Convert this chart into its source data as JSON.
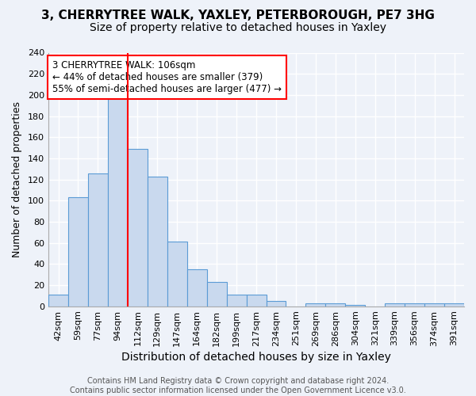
{
  "title1": "3, CHERRYTREE WALK, YAXLEY, PETERBOROUGH, PE7 3HG",
  "title2": "Size of property relative to detached houses in Yaxley",
  "xlabel": "Distribution of detached houses by size in Yaxley",
  "ylabel": "Number of detached properties",
  "bin_labels": [
    "42sqm",
    "59sqm",
    "77sqm",
    "94sqm",
    "112sqm",
    "129sqm",
    "147sqm",
    "164sqm",
    "182sqm",
    "199sqm",
    "217sqm",
    "234sqm",
    "251sqm",
    "269sqm",
    "286sqm",
    "304sqm",
    "321sqm",
    "339sqm",
    "356sqm",
    "374sqm",
    "391sqm"
  ],
  "bar_values": [
    11,
    103,
    126,
    200,
    149,
    123,
    61,
    35,
    23,
    11,
    11,
    5,
    0,
    3,
    3,
    1,
    0,
    3,
    3,
    3,
    3
  ],
  "bar_color": "#c9d9ee",
  "bar_edge_color": "#5b9bd5",
  "vline_x": 3.5,
  "vline_color": "red",
  "annotation_text": "3 CHERRYTREE WALK: 106sqm\n← 44% of detached houses are smaller (379)\n55% of semi-detached houses are larger (477) →",
  "annotation_box_color": "white",
  "annotation_box_edge_color": "red",
  "ylim": [
    0,
    240
  ],
  "yticks": [
    0,
    20,
    40,
    60,
    80,
    100,
    120,
    140,
    160,
    180,
    200,
    220,
    240
  ],
  "footer": "Contains HM Land Registry data © Crown copyright and database right 2024.\nContains public sector information licensed under the Open Government Licence v3.0.",
  "background_color": "#eef2f9",
  "grid_color": "white",
  "title1_fontsize": 11,
  "title2_fontsize": 10,
  "xlabel_fontsize": 10,
  "ylabel_fontsize": 9,
  "tick_fontsize": 8,
  "footer_fontsize": 7,
  "annotation_fontsize": 8.5
}
